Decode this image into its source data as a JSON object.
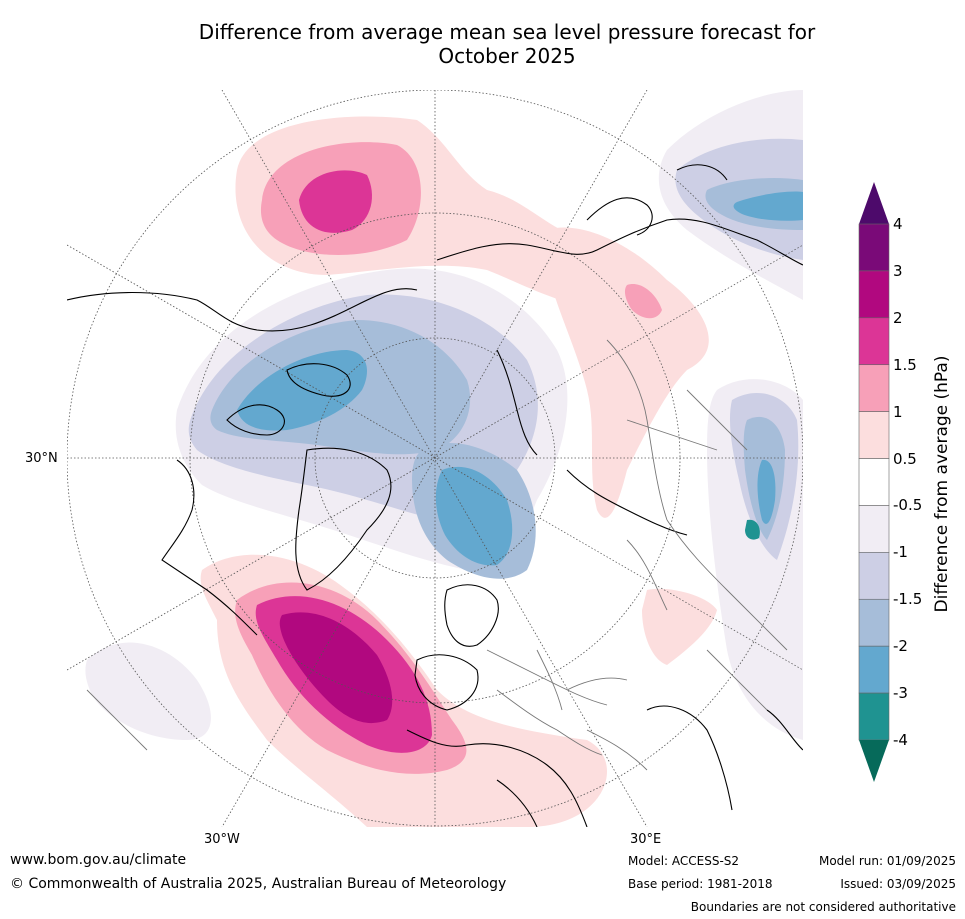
{
  "title_line1": "Difference from average mean sea level pressure forecast for",
  "title_line2": "October 2025",
  "map": {
    "lat_label": "30°N",
    "lon_label_left": "30°W",
    "lon_label_right": "30°E"
  },
  "colorbar": {
    "title": "Difference from average (hPa)",
    "ticks": [
      "4",
      "3",
      "2",
      "1.5",
      "1",
      "0.5",
      "-0.5",
      "-1",
      "-1.5",
      "-2",
      "-3",
      "-4"
    ],
    "colors_top_to_bottom": [
      "#7a0a78",
      "#b1087f",
      "#dc3596",
      "#f7a0b8",
      "#fcdede",
      "#ffffff",
      "#f1edf4",
      "#cdcfe5",
      "#a6bdd9",
      "#63a8cf",
      "#1f9391"
    ],
    "arrow_top_color": "#4d0a6b",
    "arrow_bottom_color": "#066a5a"
  },
  "footer": {
    "website": "www.bom.gov.au/climate",
    "copyright": "© Commonwealth of Australia 2025, Australian Bureau of Meteorology",
    "model": "Model: ACCESS-S2",
    "base_period": "Base period: 1981-2018",
    "model_run": "Model run: 01/09/2025",
    "issued": "Issued: 03/09/2025",
    "disclaimer": "Boundaries are not considered authoritative"
  }
}
